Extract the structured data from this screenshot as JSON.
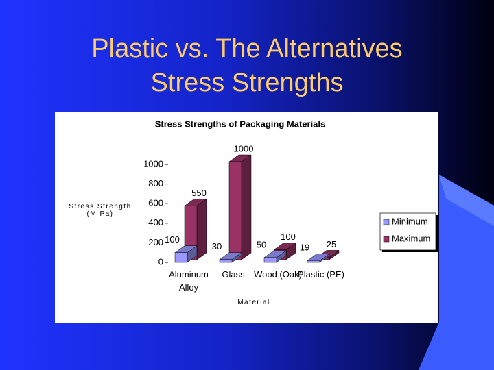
{
  "slide": {
    "title": [
      "Plastic vs. The Alternatives",
      "Stress Strengths"
    ]
  },
  "chart_data": {
    "type": "bar3d",
    "title": "Stress Strengths of Packaging Materials",
    "categories": [
      "Aluminum Alloy",
      "Glass",
      "Wood (Oak)",
      "Plastic (PE)"
    ],
    "series": [
      {
        "name": "Minimum",
        "color": "#9999ff",
        "values": [
          100,
          30,
          50,
          19
        ]
      },
      {
        "name": "Maximum",
        "color": "#993366",
        "values": [
          550,
          1000,
          100,
          25
        ]
      }
    ],
    "ylim": [
      0,
      1000
    ],
    "yticks": [
      0,
      200,
      400,
      600,
      800,
      1000
    ],
    "ylabel": "Stress Strength (M Pa)",
    "xlabel": "Material",
    "legend": "right"
  }
}
